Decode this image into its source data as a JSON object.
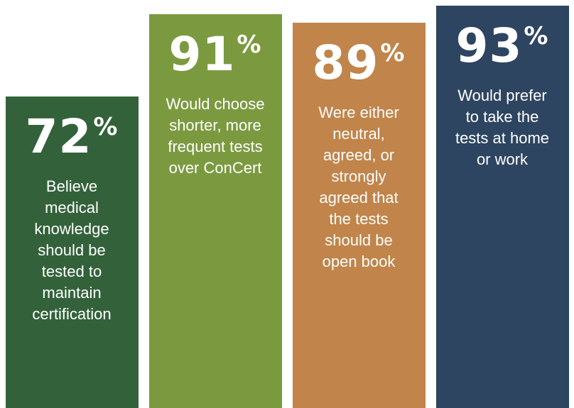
{
  "chart_data": {
    "type": "bar",
    "categories": [
      "Believe medical knowledge should be tested to maintain certification",
      "Would choose shorter, more frequent tests over ConCert",
      "Were either neutral, agreed, or strongly agreed that the tests should be open book",
      "Would prefer to take the tests at home or work"
    ],
    "values": [
      72,
      91,
      89,
      93
    ],
    "value_labels": [
      "72%",
      "91%",
      "89%",
      "93%"
    ],
    "colors": [
      "#33623a",
      "#7b9a40",
      "#c1844a",
      "#2d4560"
    ],
    "ylim": [
      0,
      93
    ]
  }
}
